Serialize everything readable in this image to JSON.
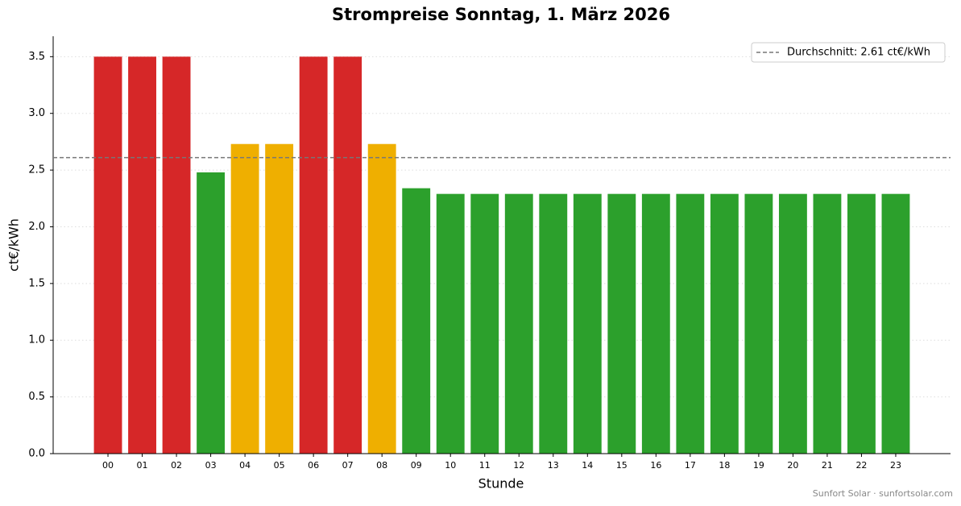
{
  "chart_data": {
    "type": "bar",
    "title": "Strompreise Sonntag, 1. März 2026",
    "x_label": "Stunde",
    "y_label": "ct€/kWh",
    "categories": [
      "00",
      "01",
      "02",
      "03",
      "04",
      "05",
      "06",
      "07",
      "08",
      "09",
      "10",
      "11",
      "12",
      "13",
      "14",
      "15",
      "16",
      "17",
      "18",
      "19",
      "20",
      "21",
      "22",
      "23"
    ],
    "values": [
      3.5,
      3.5,
      3.5,
      2.48,
      2.73,
      2.73,
      3.5,
      3.5,
      2.73,
      2.34,
      2.29,
      2.29,
      2.29,
      2.29,
      2.29,
      2.29,
      2.29,
      2.29,
      2.29,
      2.29,
      2.29,
      2.29,
      2.29,
      2.29
    ],
    "colors": [
      "#d62728",
      "#d62728",
      "#d62728",
      "#2ca02c",
      "#efaf00",
      "#efaf00",
      "#d62728",
      "#d62728",
      "#efaf00",
      "#2ca02c",
      "#2ca02c",
      "#2ca02c",
      "#2ca02c",
      "#2ca02c",
      "#2ca02c",
      "#2ca02c",
      "#2ca02c",
      "#2ca02c",
      "#2ca02c",
      "#2ca02c",
      "#2ca02c",
      "#2ca02c",
      "#2ca02c",
      "#2ca02c"
    ],
    "ylim": [
      0,
      3.68
    ],
    "yticks": [
      {
        "value": 0,
        "label": "0.0"
      },
      0.5,
      {
        "value": 1,
        "label": "1.0"
      },
      1.5,
      {
        "value": 2,
        "label": "2.0"
      },
      2.5,
      {
        "value": 3,
        "label": "3.0"
      },
      3.5
    ],
    "grid": true,
    "average": {
      "value": 2.61,
      "label": "Durchschnitt: 2.61 ct€/kWh",
      "color": "#777777"
    },
    "legend": "upper right",
    "footer": "Sunfort Solar · sunfortsolar.com"
  }
}
